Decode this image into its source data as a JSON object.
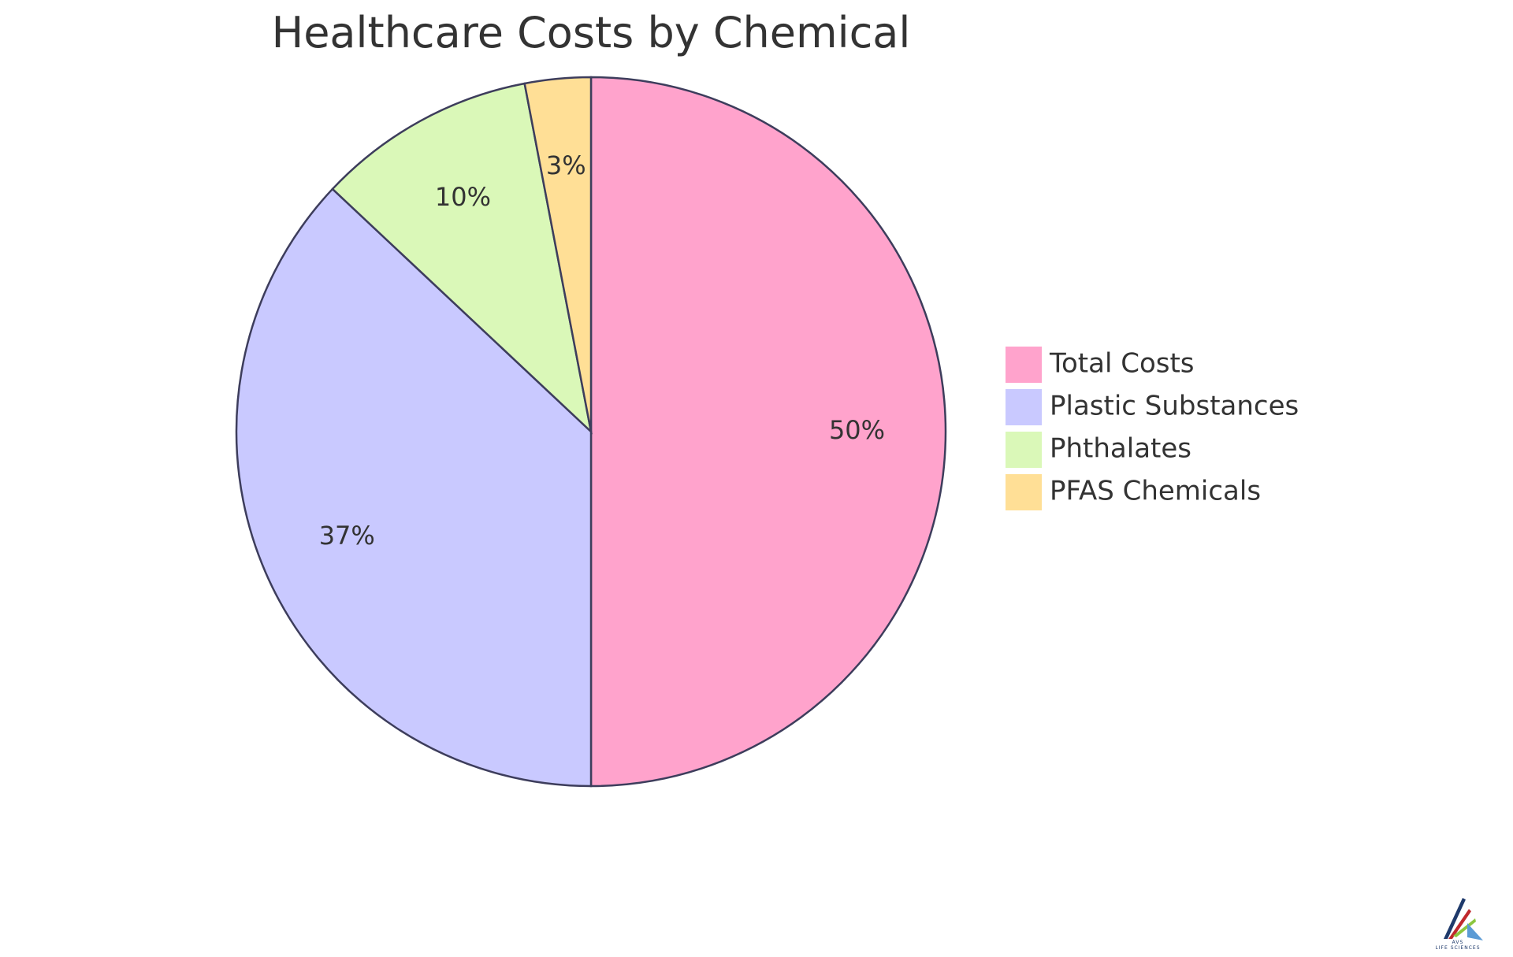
{
  "chart_data": {
    "type": "pie",
    "title": "Healthcare Costs by Chemical",
    "categories": [
      "Total Costs",
      "Plastic Substances",
      "Phthalates",
      "PFAS Chemicals"
    ],
    "values": [
      50,
      37,
      10,
      3
    ],
    "slice_labels": [
      "50%",
      "37%",
      "10%",
      "3%"
    ],
    "colors": [
      "#ffa3cc",
      "#c9c9ff",
      "#daf8b8",
      "#ffdf96"
    ],
    "legend_position": "right",
    "start_angle": "12 o'clock",
    "direction": "clockwise",
    "stroke_color": "#3d3d5c"
  },
  "logo": {
    "text": "LIFE SCIENCES",
    "top_text": "AVS",
    "colors": [
      "#1f3a6b",
      "#c0282d",
      "#8cc63f",
      "#5b9bd5"
    ]
  }
}
